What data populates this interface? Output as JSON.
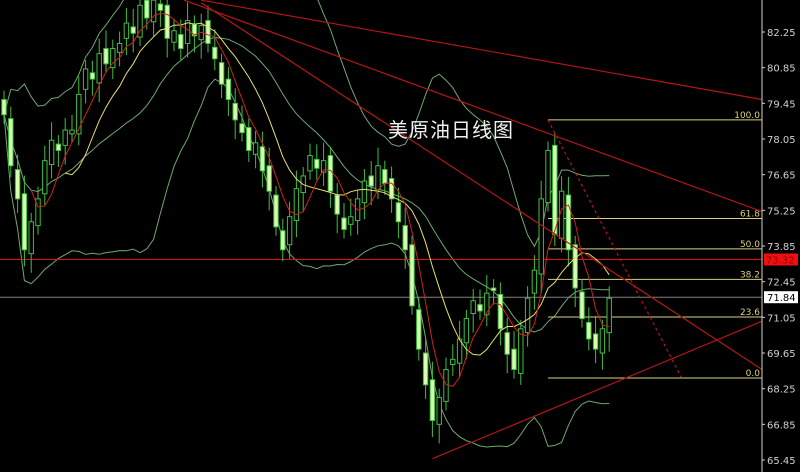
{
  "chart_data": {
    "type": "candlestick",
    "title": "美原油日线图",
    "ylim": [
      65.1,
      83.5
    ],
    "y_ticks": [
      82.25,
      80.85,
      79.45,
      78.05,
      76.65,
      75.25,
      73.85,
      72.45,
      71.05,
      69.65,
      68.25,
      66.85,
      65.45
    ],
    "y_tick_labels": [
      "82.25",
      "80.85",
      "79.45",
      "78.05",
      "76.65",
      "75.25",
      "73.85",
      "72.45",
      "71.05",
      "69.65",
      "68.25",
      "66.85",
      "65.45"
    ],
    "closes": [
      79.0,
      77.0,
      75.7,
      73.7,
      74.8,
      75.7,
      77.2,
      78.0,
      77.6,
      78.4,
      78.4,
      79.8,
      80.8,
      80.4,
      81.4,
      81.0,
      81.6,
      81.8,
      82.6,
      82.2,
      83.3,
      82.8,
      83.5,
      83.1,
      82.0,
      82.3,
      81.6,
      82.7,
      82.1,
      82.5,
      81.8,
      81.2,
      80.2,
      79.6,
      78.8,
      78.3,
      77.6,
      77.9,
      76.8,
      76.0,
      74.6,
      73.7,
      75.0,
      76.1,
      76.6,
      77.4,
      76.9,
      77.2,
      76.0,
      75.1,
      74.5,
      75.0,
      75.7,
      76.4,
      76.2,
      77.0,
      76.3,
      75.7,
      74.8,
      73.7,
      71.5,
      69.8,
      68.4,
      67.0,
      67.9,
      69.0,
      69.4,
      70.2,
      71.0,
      71.7,
      71.3,
      72.0,
      72.1,
      70.6,
      69.6,
      69.0,
      70.6,
      71.8,
      72.9,
      75.7,
      77.6,
      74.3,
      76.0,
      73.7,
      72.2,
      71.0,
      70.2,
      69.8,
      70.6,
      71.8
    ],
    "indicators": {
      "ma_fast": 5,
      "ma_slow": 10,
      "bollinger_period": 20
    },
    "price_lines": {
      "resistance_level": {
        "value": 73.32,
        "label": "73.32",
        "color": "#e01010"
      },
      "last_price": {
        "value": 71.84,
        "label": "71.84",
        "color": "#808080"
      }
    },
    "fibonacci": {
      "high": 78.8,
      "low": 68.67,
      "start_index": 80,
      "levels": [
        {
          "ratio": 1.0,
          "label": "100.0"
        },
        {
          "ratio": 0.618,
          "label": "61.8"
        },
        {
          "ratio": 0.5,
          "label": "50.0"
        },
        {
          "ratio": 0.382,
          "label": "38.2"
        },
        {
          "ratio": 0.236,
          "label": "23.6"
        },
        {
          "ratio": 0.0,
          "label": "0.0"
        }
      ]
    },
    "trendlines": [
      {
        "from": [
          29,
          83.5
        ],
        "to": [
          "axis",
          79.6
        ],
        "style": "solid"
      },
      {
        "from": [
          26.5,
          83.5
        ],
        "to": [
          "axis",
          75.2
        ],
        "style": "solid"
      },
      {
        "from": [
          29,
          83.4
        ],
        "to": [
          "axis",
          69.0
        ],
        "style": "solid"
      },
      {
        "from": [
          63,
          65.5
        ],
        "to": [
          "axis",
          70.9
        ],
        "style": "solid"
      },
      {
        "from": [
          80,
          78.8
        ],
        "to": [
          99.6,
          68.7
        ],
        "style": "dashed"
      }
    ],
    "colors": {
      "candle": "#3fbf3f",
      "candle_body": "#d8ffb0",
      "ma_fast": "#d02020",
      "ma_slow": "#e8e070",
      "bollinger": "#6fa86f",
      "trendline": "#b01818",
      "fib": "#d8d080",
      "axis_text": "#d0d0d0"
    }
  }
}
